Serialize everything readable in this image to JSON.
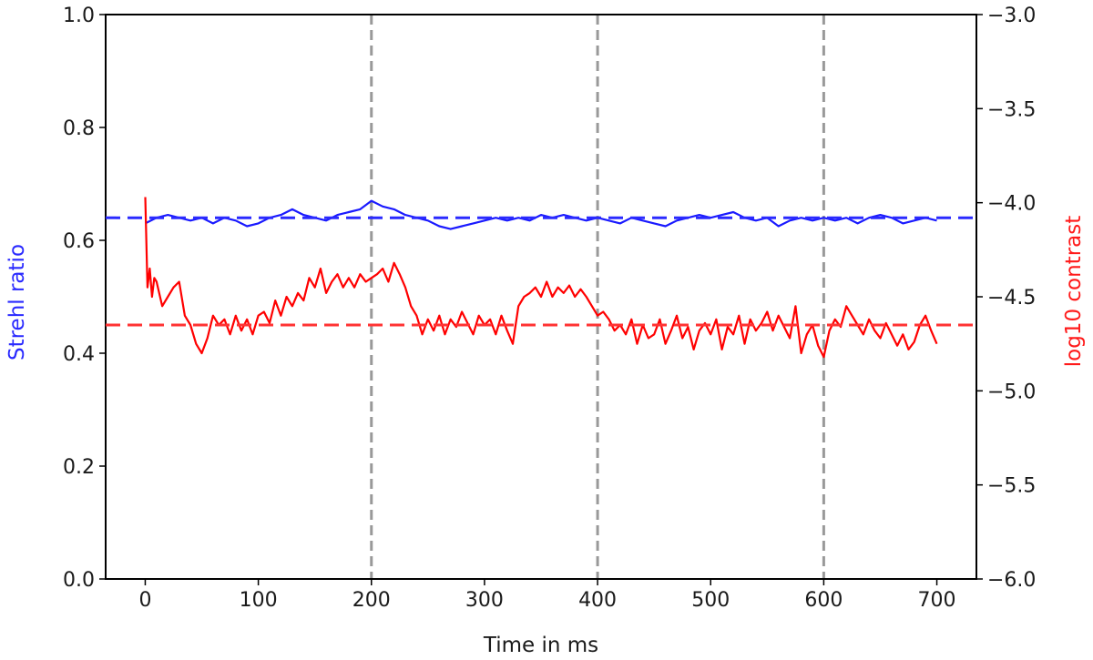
{
  "chart_data": {
    "type": "line",
    "title": "",
    "xlabel": "Time in ms",
    "ylabel_left": "Strehl ratio",
    "ylabel_right": "log10 contrast",
    "ylabel_left_color": "#2a2aff",
    "ylabel_right_color": "#ff1a1a",
    "xlim": [
      -35,
      735
    ],
    "ylim_left": [
      0.0,
      1.0
    ],
    "ylim_right": [
      -6.0,
      -3.0
    ],
    "x_ticks": [
      "0",
      "100",
      "200",
      "300",
      "400",
      "500",
      "600",
      "700"
    ],
    "y_left_ticks": [
      "0.0",
      "0.2",
      "0.4",
      "0.6",
      "0.8",
      "1.0"
    ],
    "y_right_ticks": [
      "−6.0",
      "−5.5",
      "−5.0",
      "−4.5",
      "−4.0",
      "−3.5",
      "−3.0"
    ],
    "grid": false,
    "vertical_markers": [
      200,
      400,
      600
    ],
    "vertical_marker_color": "#999999",
    "reference_lines": [
      {
        "axis": "left",
        "value": 0.64,
        "color": "#2a2aff",
        "style": "dashed"
      },
      {
        "axis": "right",
        "value": -4.65,
        "color": "#ff3333",
        "style": "dashed"
      }
    ],
    "series": [
      {
        "axis": "left",
        "color": "#1a1aff",
        "x": [
          0,
          10,
          20,
          30,
          40,
          50,
          60,
          70,
          80,
          90,
          100,
          110,
          120,
          130,
          140,
          150,
          160,
          170,
          180,
          190,
          200,
          210,
          220,
          230,
          240,
          250,
          260,
          270,
          280,
          290,
          300,
          310,
          320,
          330,
          340,
          350,
          360,
          370,
          380,
          390,
          400,
          410,
          420,
          430,
          440,
          450,
          460,
          470,
          480,
          490,
          500,
          510,
          520,
          530,
          540,
          550,
          560,
          570,
          580,
          590,
          600,
          610,
          620,
          630,
          640,
          650,
          660,
          670,
          680,
          690,
          700
        ],
        "y": [
          0.63,
          0.64,
          0.645,
          0.64,
          0.635,
          0.64,
          0.63,
          0.64,
          0.635,
          0.625,
          0.63,
          0.64,
          0.645,
          0.655,
          0.645,
          0.64,
          0.635,
          0.645,
          0.65,
          0.655,
          0.67,
          0.66,
          0.655,
          0.645,
          0.64,
          0.635,
          0.625,
          0.62,
          0.625,
          0.63,
          0.635,
          0.64,
          0.635,
          0.64,
          0.635,
          0.645,
          0.64,
          0.645,
          0.64,
          0.635,
          0.64,
          0.635,
          0.63,
          0.64,
          0.635,
          0.63,
          0.625,
          0.635,
          0.64,
          0.645,
          0.64,
          0.645,
          0.65,
          0.64,
          0.635,
          0.64,
          0.625,
          0.635,
          0.64,
          0.635,
          0.64,
          0.635,
          0.64,
          0.63,
          0.64,
          0.645,
          0.64,
          0.63,
          0.635,
          0.64,
          0.635
        ]
      },
      {
        "axis": "right",
        "color": "#ff0000",
        "x": [
          0,
          2,
          4,
          6,
          8,
          10,
          15,
          20,
          25,
          30,
          35,
          40,
          45,
          50,
          55,
          60,
          65,
          70,
          75,
          80,
          85,
          90,
          95,
          100,
          105,
          110,
          115,
          120,
          125,
          130,
          135,
          140,
          145,
          150,
          155,
          160,
          165,
          170,
          175,
          180,
          185,
          190,
          195,
          200,
          205,
          210,
          215,
          220,
          225,
          230,
          235,
          240,
          245,
          250,
          255,
          260,
          265,
          270,
          275,
          280,
          285,
          290,
          295,
          300,
          305,
          310,
          315,
          320,
          325,
          330,
          335,
          340,
          345,
          350,
          355,
          360,
          365,
          370,
          375,
          380,
          385,
          390,
          395,
          400,
          405,
          410,
          415,
          420,
          425,
          430,
          435,
          440,
          445,
          450,
          455,
          460,
          465,
          470,
          475,
          480,
          485,
          490,
          495,
          500,
          505,
          510,
          515,
          520,
          525,
          530,
          535,
          540,
          545,
          550,
          555,
          560,
          565,
          570,
          575,
          580,
          585,
          590,
          595,
          600,
          605,
          610,
          615,
          620,
          625,
          630,
          635,
          640,
          645,
          650,
          655,
          660,
          665,
          670,
          675,
          680,
          685,
          690,
          695,
          700
        ],
        "y": [
          -3.97,
          -4.45,
          -4.35,
          -4.5,
          -4.4,
          -4.42,
          -4.55,
          -4.5,
          -4.45,
          -4.42,
          -4.6,
          -4.65,
          -4.75,
          -4.8,
          -4.72,
          -4.6,
          -4.65,
          -4.62,
          -4.7,
          -4.6,
          -4.68,
          -4.62,
          -4.7,
          -4.6,
          -4.58,
          -4.64,
          -4.52,
          -4.6,
          -4.5,
          -4.55,
          -4.48,
          -4.52,
          -4.4,
          -4.45,
          -4.35,
          -4.48,
          -4.42,
          -4.38,
          -4.45,
          -4.4,
          -4.45,
          -4.38,
          -4.42,
          -4.4,
          -4.38,
          -4.35,
          -4.42,
          -4.32,
          -4.38,
          -4.45,
          -4.55,
          -4.6,
          -4.7,
          -4.62,
          -4.68,
          -4.6,
          -4.7,
          -4.62,
          -4.66,
          -4.58,
          -4.64,
          -4.7,
          -4.6,
          -4.65,
          -4.62,
          -4.7,
          -4.6,
          -4.68,
          -4.75,
          -4.55,
          -4.5,
          -4.48,
          -4.45,
          -4.5,
          -4.42,
          -4.5,
          -4.45,
          -4.48,
          -4.44,
          -4.5,
          -4.46,
          -4.5,
          -4.55,
          -4.6,
          -4.58,
          -4.62,
          -4.68,
          -4.65,
          -4.7,
          -4.62,
          -4.75,
          -4.65,
          -4.72,
          -4.7,
          -4.62,
          -4.75,
          -4.68,
          -4.6,
          -4.72,
          -4.66,
          -4.78,
          -4.68,
          -4.64,
          -4.7,
          -4.62,
          -4.78,
          -4.66,
          -4.7,
          -4.6,
          -4.75,
          -4.62,
          -4.68,
          -4.64,
          -4.58,
          -4.68,
          -4.6,
          -4.66,
          -4.72,
          -4.55,
          -4.8,
          -4.7,
          -4.65,
          -4.76,
          -4.82,
          -4.68,
          -4.62,
          -4.66,
          -4.55,
          -4.6,
          -4.65,
          -4.7,
          -4.62,
          -4.68,
          -4.72,
          -4.64,
          -4.7,
          -4.76,
          -4.7,
          -4.78,
          -4.74,
          -4.65,
          -4.6,
          -4.68,
          -4.75
        ]
      }
    ]
  }
}
